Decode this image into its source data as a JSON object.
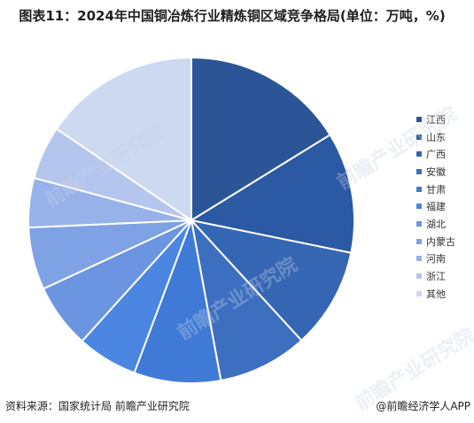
{
  "title": "图表11：2024年中国铜冶炼行业精炼铜区域竞争格局(单位：万吨，%)",
  "footer": {
    "source": "资料来源：国家统计局 前瞻产业研究院",
    "brand": "@前瞻经济学人APP"
  },
  "watermark_text": "前瞻产业研究院",
  "chart_data": {
    "type": "pie",
    "title": "图表11：2024年中国铜冶炼行业精炼铜区域竞争格局(单位：万吨，%)",
    "legend_position": "right",
    "slices": [
      {
        "label": "江西",
        "value": 16.2,
        "color": "#2c5597"
      },
      {
        "label": "山东",
        "value": 12.0,
        "color": "#2b59a3"
      },
      {
        "label": "广西",
        "value": 10.0,
        "color": "#3566b3"
      },
      {
        "label": "安徽",
        "value": 8.9,
        "color": "#3d6fc1"
      },
      {
        "label": "甘肃",
        "value": 8.6,
        "color": "#3f7bd6"
      },
      {
        "label": "福建",
        "value": 6.0,
        "color": "#4a86e2"
      },
      {
        "label": "湖北",
        "value": 6.4,
        "color": "#6b95e0"
      },
      {
        "label": "内蒙古",
        "value": 6.2,
        "color": "#7fa2e4"
      },
      {
        "label": "河南",
        "value": 4.9,
        "color": "#97b2e9"
      },
      {
        "label": "浙江",
        "value": 5.3,
        "color": "#b4c6ee"
      },
      {
        "label": "其他",
        "value": 15.5,
        "color": "#cdd8f1"
      }
    ]
  }
}
